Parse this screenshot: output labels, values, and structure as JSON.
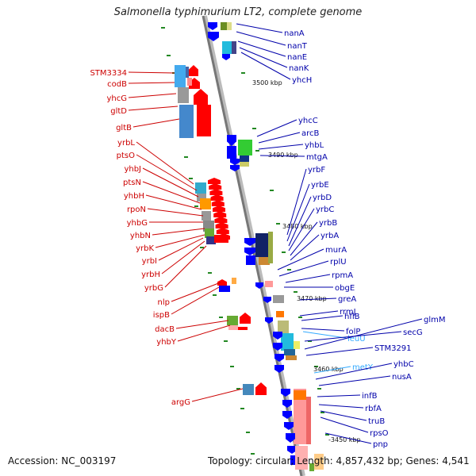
{
  "title": "Salmonella typhimurium LT2, complete genome",
  "footer": {
    "accession": "Accession: NC_003197",
    "summary": "Topology: circular; Length: 4,857,432 bp; Genes: 4,541"
  },
  "colors": {
    "strand_plus": "#ff0000",
    "strand_minus": "#0000ff",
    "backbone": "#888888",
    "label_plus": "#cc0000",
    "label_minus": "#0000aa",
    "label_rna": "#33aaff",
    "tick": "#228822"
  },
  "scale_labels": [
    "3500 kbp",
    "3490 kbp",
    "3480 kbp",
    "3470 kbp",
    "3460 kbp",
    "-3450 kbp"
  ],
  "left_genes": [
    "STM3334",
    "codB",
    "yhcG",
    "gltD",
    "gltB",
    "yrbL",
    "ptsO",
    "yhbJ",
    "ptsN",
    "yhbH",
    "rpoN",
    "yhbG",
    "yhbN",
    "yrbK",
    "yrbI",
    "yrbH",
    "yrbG",
    "nlp",
    "ispB",
    "dacB",
    "yhbY",
    "argG"
  ],
  "right_genes": [
    "nanA",
    "nanT",
    "nanE",
    "nanK",
    "yhcH",
    "yhcC",
    "arcB",
    "yhbL",
    "mtgA",
    "yrbF",
    "yrbE",
    "yrbD",
    "yrbC",
    "yrbB",
    "yrbA",
    "murA",
    "rplU",
    "rpmA",
    "obgE",
    "greA",
    "rrmJ",
    "hflB",
    "folP",
    "leuU",
    "secG",
    "glmM",
    "STM3291",
    "metY",
    "yhbC",
    "nusA",
    "infB",
    "rbfA",
    "truB",
    "rpsO",
    "pnp"
  ]
}
